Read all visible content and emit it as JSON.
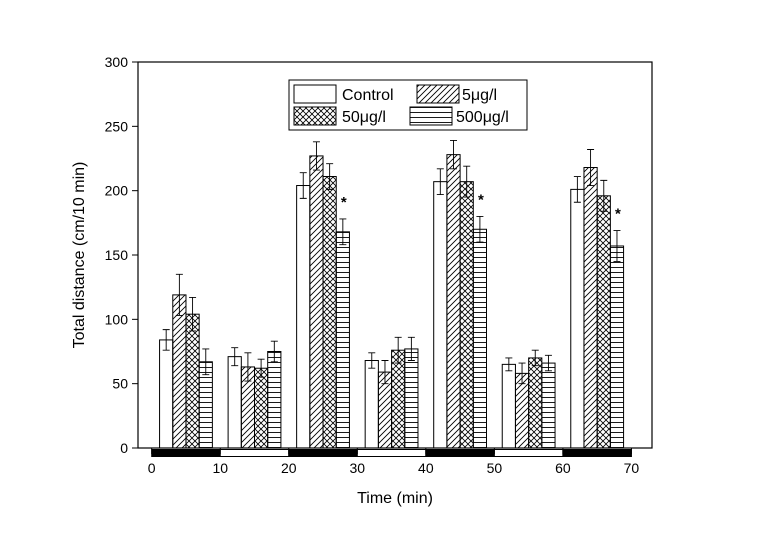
{
  "chart_data": {
    "type": "bar",
    "xlabel": "Time (min)",
    "ylabel": "Total distance (cm/10 min)",
    "ylim": [
      0,
      300
    ],
    "yticks": [
      "0",
      "50",
      "100",
      "150",
      "200",
      "250",
      "300"
    ],
    "xlim": [
      -2,
      73
    ],
    "xticks": [
      "0",
      "10",
      "20",
      "30",
      "40",
      "50",
      "60",
      "70"
    ],
    "categories": [
      "0-10",
      "10-20",
      "20-30",
      "30-40",
      "40-50",
      "50-60",
      "60-70"
    ],
    "series": [
      {
        "name": "Control",
        "values": [
          84,
          71,
          204,
          68,
          207,
          65,
          201
        ],
        "errors": [
          8,
          7,
          10,
          6,
          10,
          5,
          10
        ]
      },
      {
        "name": "5μg/l",
        "values": [
          119,
          63,
          227,
          59,
          228,
          58,
          218
        ],
        "errors": [
          16,
          11,
          11,
          9,
          11,
          8,
          14
        ]
      },
      {
        "name": "50μg/l",
        "values": [
          104,
          62,
          211,
          76,
          207,
          70,
          196
        ],
        "errors": [
          13,
          7,
          10,
          10,
          12,
          6,
          12
        ]
      },
      {
        "name": "500μg/l",
        "values": [
          67,
          75,
          168,
          77,
          170,
          66,
          157
        ],
        "errors": [
          10,
          8,
          10,
          9,
          10,
          6,
          12
        ]
      }
    ],
    "significance_marks": [
      {
        "category": "20-30",
        "series": "500μg/l",
        "label": "*"
      },
      {
        "category": "40-50",
        "series": "500μg/l",
        "label": "*"
      },
      {
        "category": "60-70",
        "series": "500μg/l",
        "label": "*"
      }
    ],
    "light_dark_bars": [
      {
        "from": 0,
        "to": 10,
        "phase": "dark"
      },
      {
        "from": 10,
        "to": 20,
        "phase": "light"
      },
      {
        "from": 20,
        "to": 30,
        "phase": "dark"
      },
      {
        "from": 30,
        "to": 40,
        "phase": "light"
      },
      {
        "from": 40,
        "to": 50,
        "phase": "dark"
      },
      {
        "from": 50,
        "to": 60,
        "phase": "light"
      },
      {
        "from": 60,
        "to": 70,
        "phase": "dark"
      }
    ],
    "legend": {
      "entries": [
        "Control",
        "5μg/l",
        "50μg/l",
        "500μg/l"
      ],
      "position": "top-center"
    },
    "colors": {
      "axis": "#000000",
      "bar_fill": "#ffffff",
      "dark_phase": "#000000"
    }
  }
}
